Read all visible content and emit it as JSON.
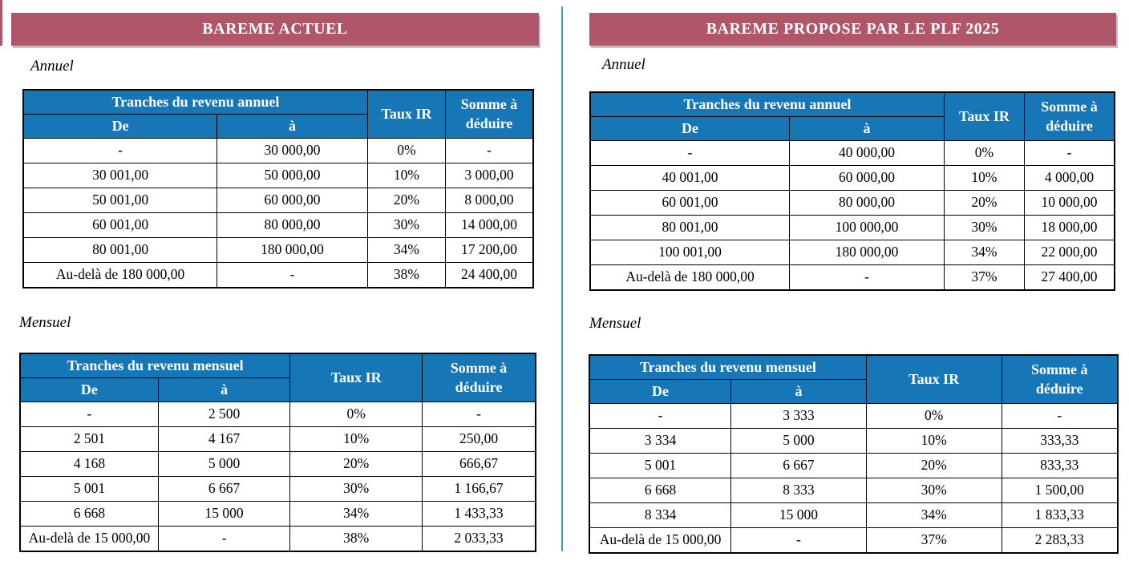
{
  "colors": {
    "banner_bg": "#b0566a",
    "banner_text": "#ffffff",
    "table_header_bg": "#1776b6",
    "table_header_text": "#ffffff",
    "divider_line": "#35a0cd",
    "table_border": "#000000",
    "body_text": "#000000"
  },
  "panels": [
    {
      "title": "BAREME ACTUEL",
      "sections": [
        {
          "label": "Annuel",
          "table": {
            "group_header": "Tranches du revenu annuel",
            "de_header": "De",
            "a_header": "à",
            "taux_header": "Taux IR",
            "somme_header": "Somme à déduire",
            "rows": [
              [
                "-",
                "30 000,00",
                "0%",
                "-"
              ],
              [
                "30 001,00",
                "50 000,00",
                "10%",
                "3 000,00"
              ],
              [
                "50 001,00",
                "60 000,00",
                "20%",
                "8 000,00"
              ],
              [
                "60 001,00",
                "80 000,00",
                "30%",
                "14 000,00"
              ],
              [
                "80 001,00",
                "180 000,00",
                "34%",
                "17 200,00"
              ],
              [
                "Au-delà de 180 000,00",
                "-",
                "38%",
                "24 400,00"
              ]
            ]
          }
        },
        {
          "label": "Mensuel",
          "table": {
            "group_header": "Tranches du revenu mensuel",
            "de_header": "De",
            "a_header": "à",
            "taux_header": "Taux IR",
            "somme_header": "Somme à déduire",
            "rows": [
              [
                "-",
                "2 500",
                "0%",
                "-"
              ],
              [
                "2 501",
                "4 167",
                "10%",
                "250,00"
              ],
              [
                "4 168",
                "5 000",
                "20%",
                "666,67"
              ],
              [
                "5 001",
                "6 667",
                "30%",
                "1 166,67"
              ],
              [
                "6 668",
                "15 000",
                "34%",
                "1 433,33"
              ],
              [
                "Au-delà de 15 000,00",
                "-",
                "38%",
                "2 033,33"
              ]
            ]
          }
        }
      ]
    },
    {
      "title": "BAREME PROPOSE PAR LE PLF 2025",
      "sections": [
        {
          "label": "Annuel",
          "table": {
            "group_header": "Tranches du revenu annuel",
            "de_header": "De",
            "a_header": "à",
            "taux_header": "Taux IR",
            "somme_header": "Somme à déduire",
            "rows": [
              [
                "-",
                "40 000,00",
                "0%",
                "-"
              ],
              [
                "40 001,00",
                "60 000,00",
                "10%",
                "4 000,00"
              ],
              [
                "60 001,00",
                "80 000,00",
                "20%",
                "10 000,00"
              ],
              [
                "80 001,00",
                "100 000,00",
                "30%",
                "18 000,00"
              ],
              [
                "100 001,00",
                "180 000,00",
                "34%",
                "22 000,00"
              ],
              [
                "Au-delà de 180 000,00",
                "-",
                "37%",
                "27 400,00"
              ]
            ]
          }
        },
        {
          "label": "Mensuel",
          "table": {
            "group_header": "Tranches du revenu mensuel",
            "de_header": "De",
            "a_header": "à",
            "taux_header": "Taux IR",
            "somme_header": "Somme à déduire",
            "rows": [
              [
                "-",
                "3 333",
                "0%",
                "-"
              ],
              [
                "3 334",
                "5 000",
                "10%",
                "333,33"
              ],
              [
                "5 001",
                "6 667",
                "20%",
                "833,33"
              ],
              [
                "6 668",
                "8 333",
                "30%",
                "1 500,00"
              ],
              [
                "8 334",
                "15 000",
                "34%",
                "1 833,33"
              ],
              [
                "Au-delà de 15 000,00",
                "-",
                "37%",
                "2 283,33"
              ]
            ]
          }
        }
      ]
    }
  ]
}
